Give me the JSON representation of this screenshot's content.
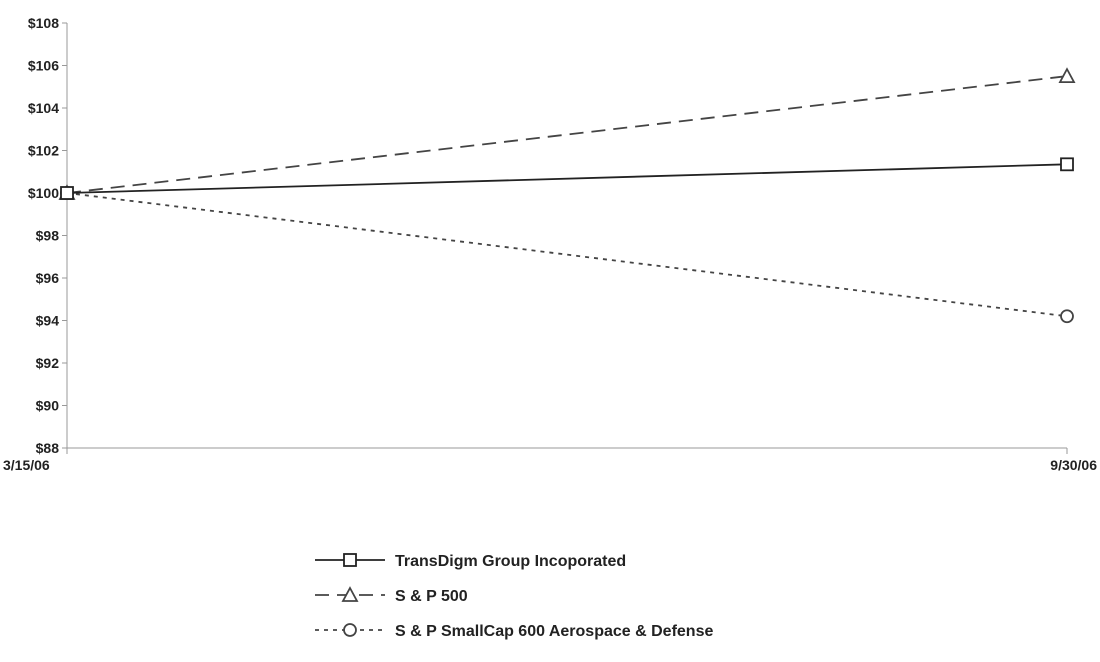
{
  "chart_data": {
    "type": "line",
    "x": [
      "3/15/06",
      "9/30/06"
    ],
    "series": [
      {
        "name": "TransDigm Group Incoporated",
        "values": [
          100.0,
          101.35
        ],
        "marker": "square",
        "dash": "solid",
        "color": "#222222"
      },
      {
        "name": "S & P 500",
        "values": [
          100.0,
          105.5
        ],
        "marker": "triangle",
        "dash": "dashed",
        "color": "#444444"
      },
      {
        "name": "S & P SmallCap 600 Aerospace & Defense",
        "values": [
          100.0,
          94.2
        ],
        "marker": "circle",
        "dash": "dotted",
        "color": "#444444"
      }
    ],
    "ylim": [
      88,
      108
    ],
    "yticks": [
      88,
      90,
      92,
      94,
      96,
      98,
      100,
      102,
      104,
      106,
      108
    ],
    "ytick_labels": [
      "$88",
      "$90",
      "$92",
      "$94",
      "$96",
      "$98",
      "$100",
      "$102",
      "$104",
      "$106",
      "$108"
    ],
    "xtick_labels": [
      "3/15/06",
      "9/30/06"
    ],
    "grid": false,
    "legend_position": "bottom-center",
    "title": "",
    "xlabel": "",
    "ylabel": ""
  }
}
